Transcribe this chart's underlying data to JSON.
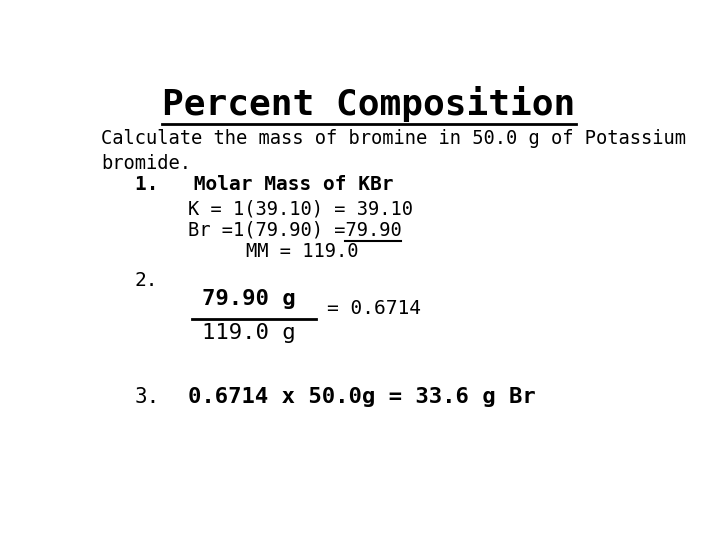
{
  "title": "Percent Composition",
  "subtitle": "Calculate the mass of bromine in 50.0 g of Potassium\nbromide.",
  "step1_label": "1.   Molar Mass of KBr",
  "step1_line1": "K = 1(39.10) = 39.10",
  "step1_line2_pre": "Br =1(79.90) =",
  "step1_line2_underline": "79.90",
  "step1_line3": "MM = 119.0",
  "step2_label": "2.",
  "step2_numerator": "79.90 g",
  "step2_denominator": "119.0 g",
  "step2_result": "= 0.6714",
  "step3_label": "3.",
  "step3_text": "0.6714 x 50.0g = 33.6 g Br",
  "bg_color": "#ffffff",
  "text_color": "#000000",
  "font_family": "monospace"
}
